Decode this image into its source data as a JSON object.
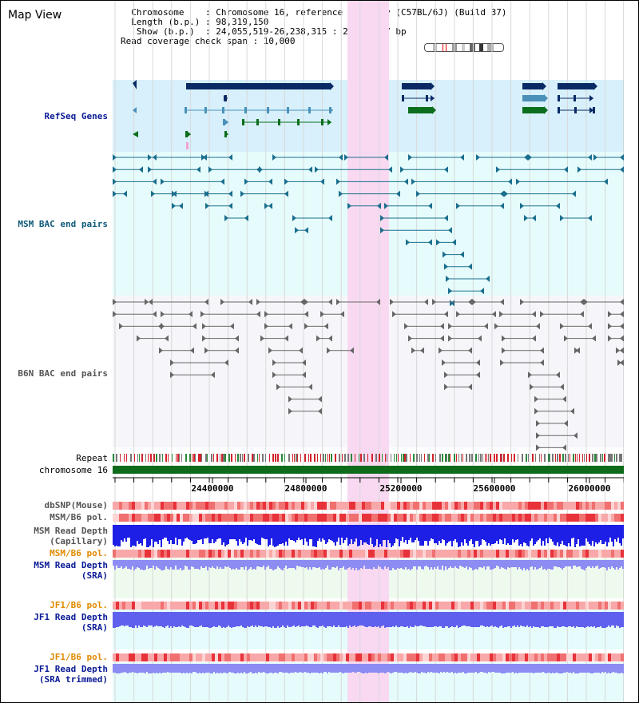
{
  "title": "Map View",
  "header": {
    "line1": "  Chromosome    : Chromosome 16, reference assembly (C57BL/6J) (Build 37)",
    "line2": "  Length (b.p.) : 98,319,150",
    "line3": "   Show (b.p.)  : 24,055,519-26,238,315 : 2,182,797 bp",
    "line4": "Read coverage check span : 10,000"
  },
  "tracks": {
    "refseq": "RefSeq Genes",
    "msm_bac": "MSM BAC end pairs",
    "b6n_bac": "B6N BAC end pairs",
    "repeat": "Repeat",
    "chromosome": "chromosome 16",
    "dbsnp": "dbSNP(Mouse)",
    "msm_b6_pol_1": "MSM/B6 pol.",
    "msm_read_depth_cap": "MSM Read Depth\n(Capillary)",
    "msm_b6_pol_2": "MSM/B6 pol.",
    "msm_read_depth_sra": "MSM Read Depth\n(SRA)",
    "jf1_b6_pol_1": "JF1/B6 pol.",
    "jf1_read_depth_sra": "JF1 Read Depth\n(SRA)",
    "jf1_b6_pol_2": "JF1/B6 pol.",
    "jf1_read_depth_trimmed": "JF1 Read Depth\n(SRA trimmed)"
  },
  "axis": {
    "ticks": [
      "24400000",
      "24800000",
      "25200000",
      "25600000",
      "26000000"
    ]
  },
  "colors": {
    "highlight": "#f9d9f1",
    "refseq_bg": "#d7f0fb",
    "msm_bac_bg": "#e6fcfc",
    "b6n_bac_bg": "#f6f6fa",
    "gene_dark": "#0a2a66",
    "gene_mid": "#4a90b8",
    "gene_green": "#0b6e1d",
    "msm_bac": "#1a6e8e",
    "b6n_bac": "#666666",
    "chromosome": "#0d6b1a",
    "pol_red": "#e8323a",
    "depth_blue": "#1d1ee6",
    "depth_light": "#8c8cf2",
    "label_blue": "#0a1a96",
    "label_teal": "#0f5a7a",
    "label_orange": "#e08a00"
  }
}
